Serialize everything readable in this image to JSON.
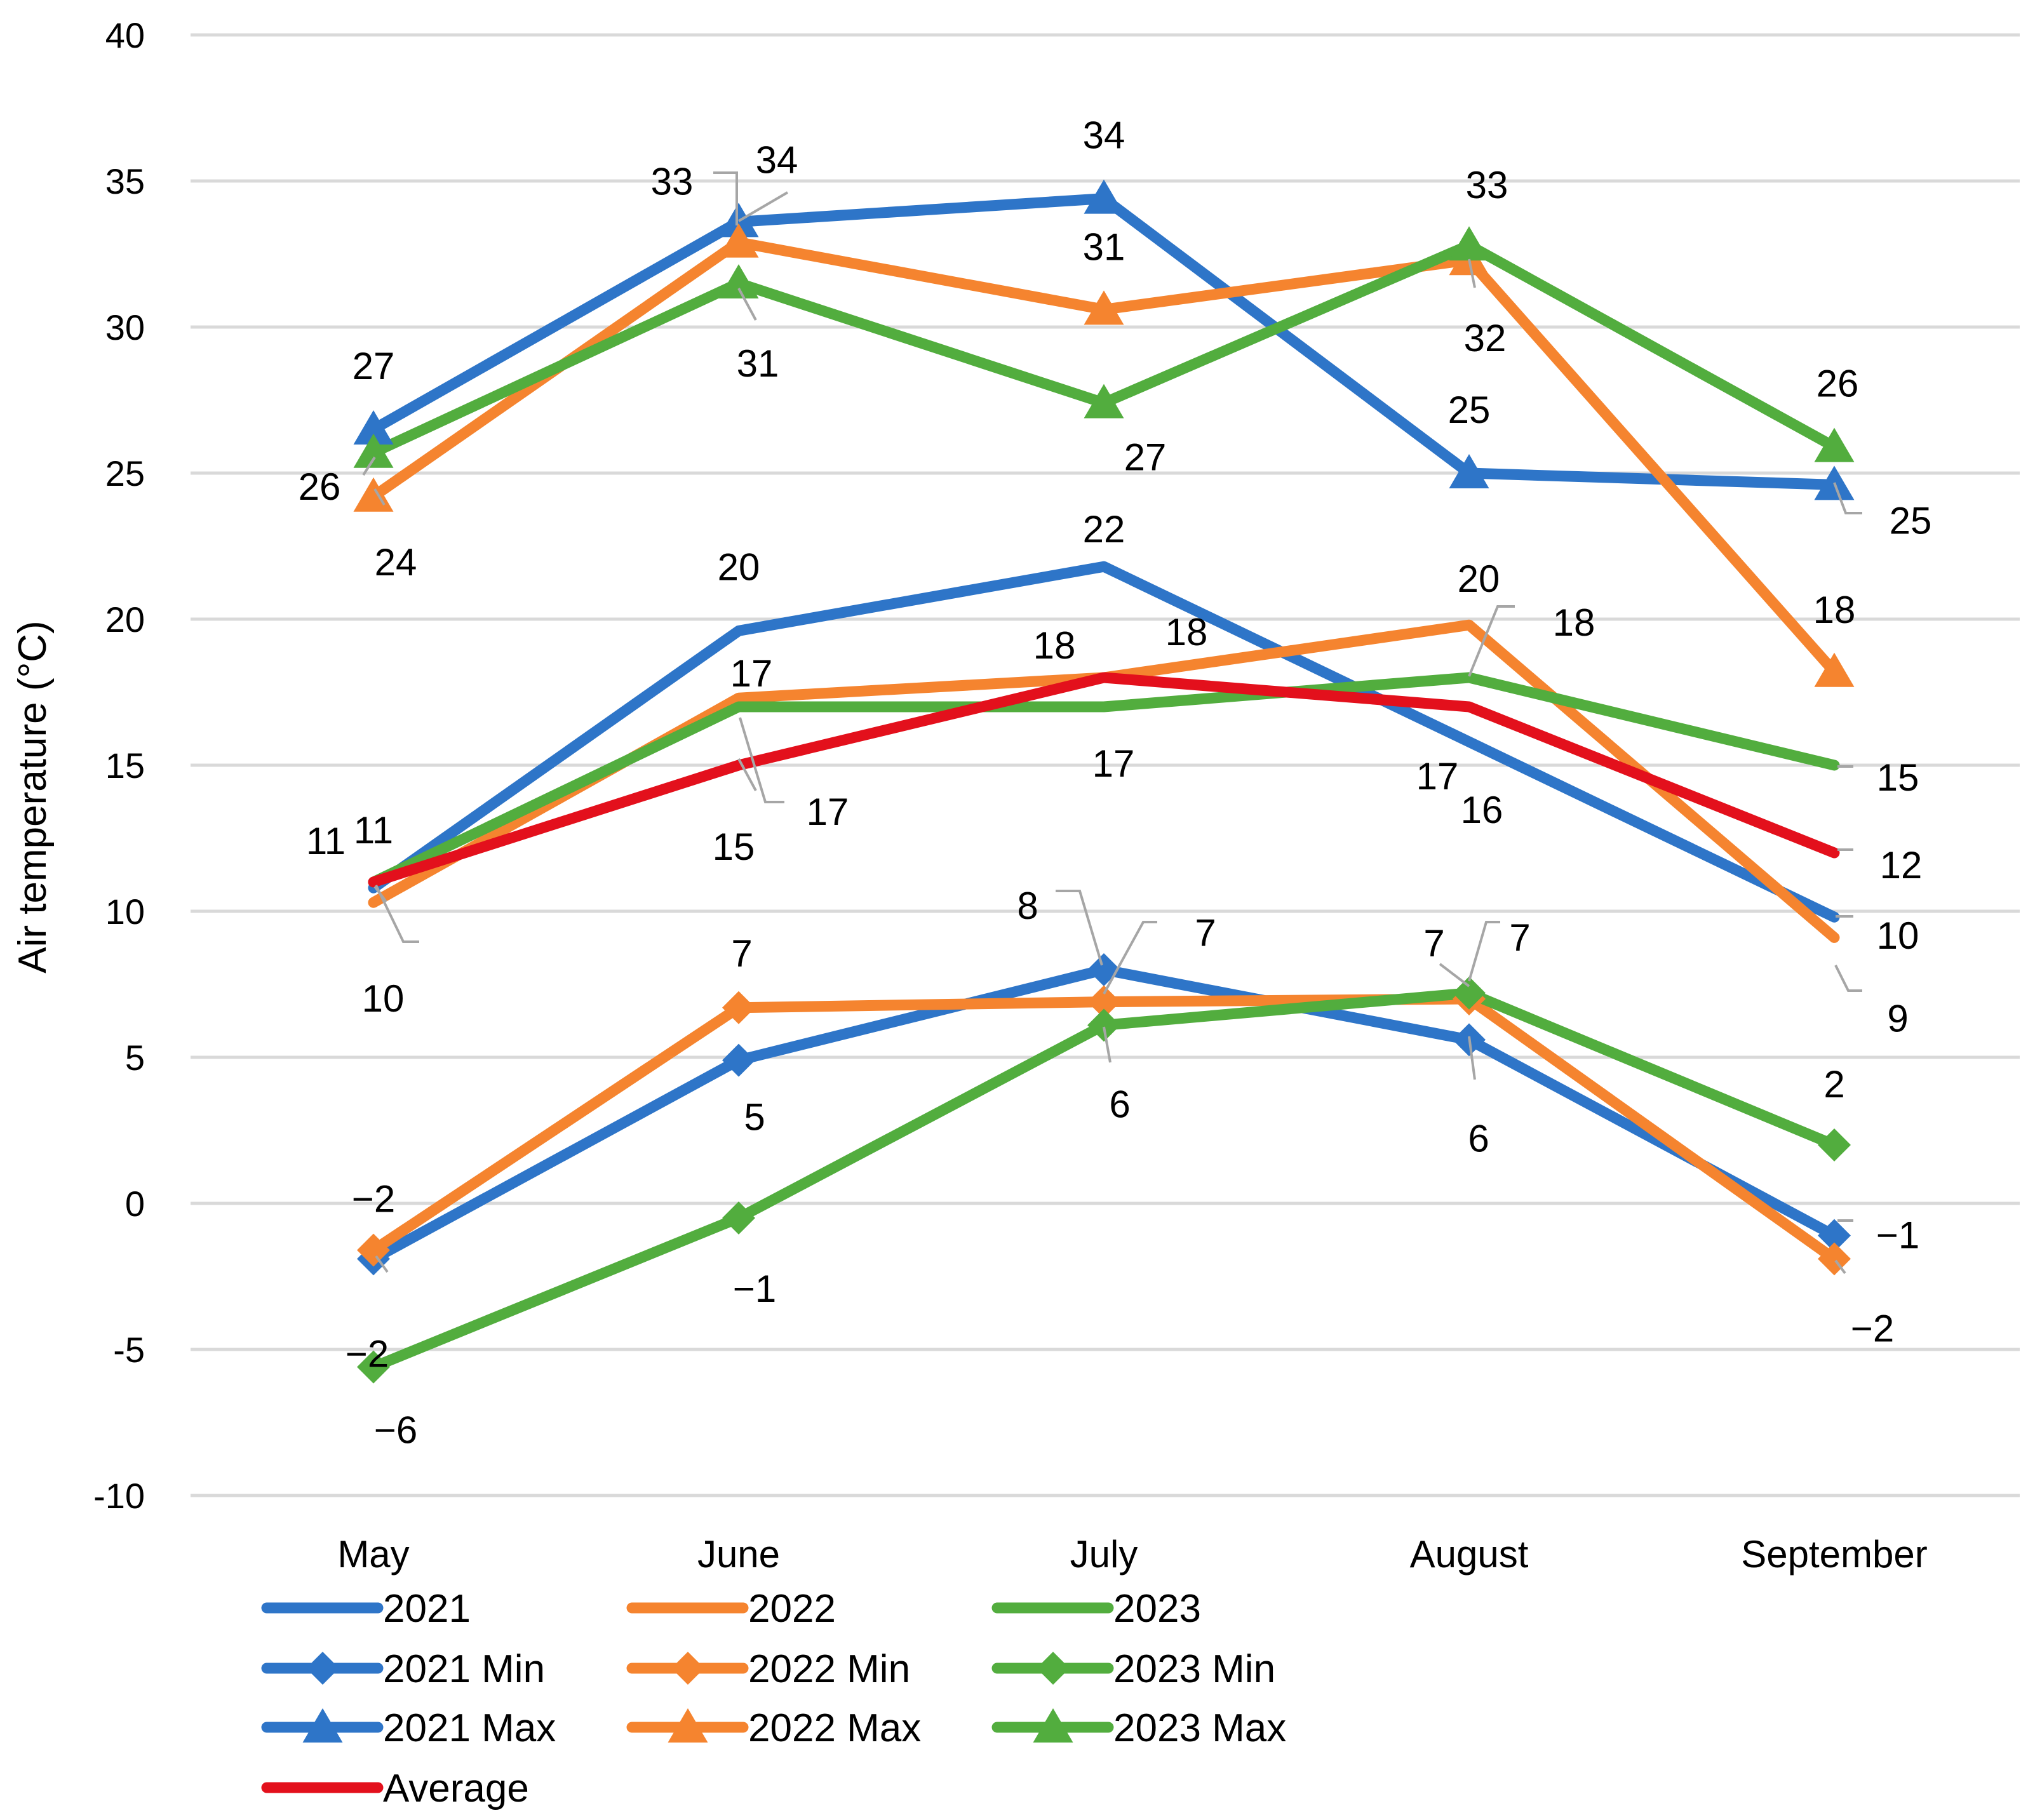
{
  "chart_data": {
    "type": "line",
    "ylabel": "Air temperature (°C)",
    "xlabel": "",
    "ylim": [
      -10,
      40
    ],
    "yticks": [
      "40",
      "35",
      "30",
      "25",
      "20",
      "15",
      "10",
      "5",
      "0",
      "-5",
      "-10"
    ],
    "ytick_values": [
      40,
      35,
      30,
      25,
      20,
      15,
      10,
      5,
      0,
      -5,
      -10
    ],
    "categories": [
      "May",
      "June",
      "July",
      "August",
      "September"
    ],
    "grid": true,
    "legend_position": "bottom",
    "series": [
      {
        "name": "2021",
        "color": "#2e75c8",
        "marker": "none",
        "values": [
          10.8,
          19.6,
          21.8,
          15.8,
          9.8
        ],
        "labels": [
          "11",
          "20",
          "22",
          "16",
          "10"
        ]
      },
      {
        "name": "2022",
        "color": "#f5842f",
        "marker": "none",
        "values": [
          10.3,
          17.3,
          18.0,
          19.8,
          9.1
        ],
        "labels": [
          "10",
          "17",
          "18",
          "20",
          "9"
        ]
      },
      {
        "name": "2023",
        "color": "#52ad3e",
        "marker": "none",
        "values": [
          11.0,
          17.0,
          17.0,
          18.0,
          15.0
        ],
        "labels": [
          "11",
          "17",
          "17",
          "18",
          "15"
        ]
      },
      {
        "name": "2021 Min",
        "color": "#2e75c8",
        "marker": "diamond",
        "values": [
          -1.9,
          4.9,
          8.0,
          5.6,
          -1.1
        ],
        "labels": [
          "−2",
          "5",
          "8",
          "6",
          "−1"
        ]
      },
      {
        "name": "2022 Min",
        "color": "#f5842f",
        "marker": "diamond",
        "values": [
          -1.6,
          6.7,
          6.9,
          7.0,
          -1.9
        ],
        "labels": [
          "−2",
          "7",
          "7",
          "7",
          "−2"
        ]
      },
      {
        "name": "2023 Min",
        "color": "#52ad3e",
        "marker": "diamond",
        "values": [
          -5.6,
          -0.5,
          6.1,
          7.2,
          2.0
        ],
        "labels": [
          "−6",
          "−1",
          "6",
          "7",
          "2"
        ]
      },
      {
        "name": "2021 Max",
        "color": "#2e75c8",
        "marker": "triangle",
        "values": [
          26.5,
          33.6,
          34.4,
          25.0,
          24.6
        ],
        "labels": [
          "27",
          "34",
          "34",
          "25",
          "25"
        ]
      },
      {
        "name": "2022 Max",
        "color": "#f5842f",
        "marker": "triangle",
        "values": [
          24.2,
          32.9,
          30.6,
          32.3,
          18.2
        ],
        "labels": [
          "24",
          "33",
          "31",
          "32",
          "18"
        ]
      },
      {
        "name": "2023 Max",
        "color": "#52ad3e",
        "marker": "triangle",
        "values": [
          25.7,
          31.5,
          27.4,
          32.8,
          25.9
        ],
        "labels": [
          "26",
          "31",
          "27",
          "33",
          "26"
        ]
      },
      {
        "name": "Average",
        "color": "#e3101c",
        "marker": "none",
        "values": [
          11.0,
          15.0,
          18.0,
          17.0,
          12.0
        ],
        "labels": [
          "11",
          "15",
          "18",
          "17",
          "12"
        ]
      }
    ]
  }
}
